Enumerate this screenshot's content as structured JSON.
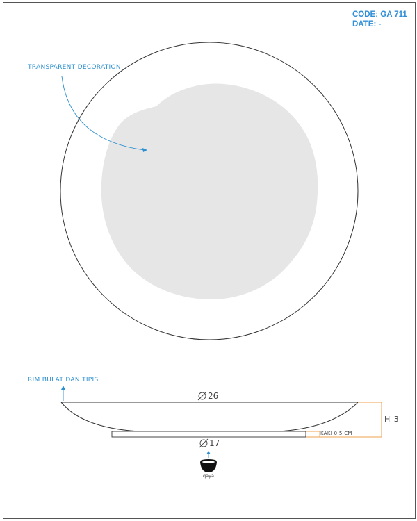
{
  "header": {
    "code": "CODE: GA 711",
    "date": "DATE: -"
  },
  "annotations": {
    "decoration": "TRANSPARENT DECORATION",
    "rim": "RIM BULAT DAN TIPIS"
  },
  "dimensions": {
    "diameter_top": "26",
    "diameter_foot": "17",
    "height": "H 3",
    "foot_height": "KAKI 0.5 CM"
  },
  "brand": {
    "name": "qaya"
  },
  "colors": {
    "accent_blue": "#2b8fd0",
    "dimension_orange": "#f0a050",
    "decoration_grey": "#e6e6e6",
    "line": "#333333"
  }
}
